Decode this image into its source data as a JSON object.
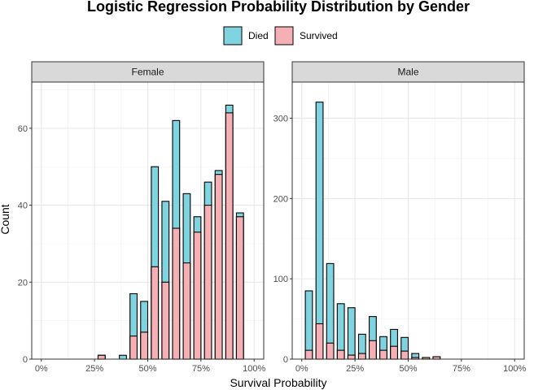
{
  "chart_data": {
    "type": "bar",
    "title": "Logistic Regression Probability Distribution by Gender",
    "xlabel": "Survival Probability",
    "ylabel": "Count",
    "legend": {
      "placement": "top",
      "entries": [
        {
          "name": "Died",
          "color": "#7fd4e0"
        },
        {
          "name": "Survived",
          "color": "#f5b0b6"
        }
      ]
    },
    "stacking": "overlay",
    "bin_width": 0.0333,
    "xlim": [
      0,
      1
    ],
    "grid": true,
    "x_ticks": [
      0,
      0.25,
      0.5,
      0.75,
      1
    ],
    "x_tick_labels": [
      "0%",
      "25%",
      "50%",
      "75%",
      "100%"
    ],
    "panels": [
      {
        "label": "Female",
        "ylim": [
          0,
          72
        ],
        "y_ticks": [
          0,
          20,
          40,
          60
        ],
        "y_tick_labels": [
          "0",
          "20",
          "40",
          "60"
        ],
        "bin_centers": [
          0.2833,
          0.3833,
          0.4333,
          0.4833,
          0.5333,
          0.5833,
          0.6333,
          0.6833,
          0.7333,
          0.7833,
          0.8333,
          0.8833,
          0.9333
        ],
        "series": [
          {
            "name": "Died",
            "values": [
              1,
              1,
              17,
              15,
              50,
              41,
              62,
              43,
              37,
              46,
              49,
              66,
              38
            ]
          },
          {
            "name": "Survived",
            "values": [
              1,
              0,
              6,
              7,
              24,
              20,
              34,
              25,
              33,
              40,
              48,
              64,
              37
            ]
          }
        ]
      },
      {
        "label": "Male",
        "ylim": [
          0,
          345
        ],
        "y_ticks": [
          0,
          100,
          200,
          300
        ],
        "y_tick_labels": [
          "0",
          "100",
          "200",
          "300"
        ],
        "bin_centers": [
          0.0333,
          0.0833,
          0.1333,
          0.1833,
          0.2333,
          0.2833,
          0.3333,
          0.3833,
          0.4333,
          0.4833,
          0.5333,
          0.5833,
          0.6333
        ],
        "series": [
          {
            "name": "Died",
            "values": [
              85,
              320,
              119,
              69,
              64,
              31,
              53,
              28,
              37,
              27,
              7,
              2,
              3
            ]
          },
          {
            "name": "Survived",
            "values": [
              11,
              44,
              20,
              11,
              5,
              7,
              23,
              11,
              16,
              10,
              2,
              2,
              3
            ]
          }
        ]
      }
    ]
  }
}
